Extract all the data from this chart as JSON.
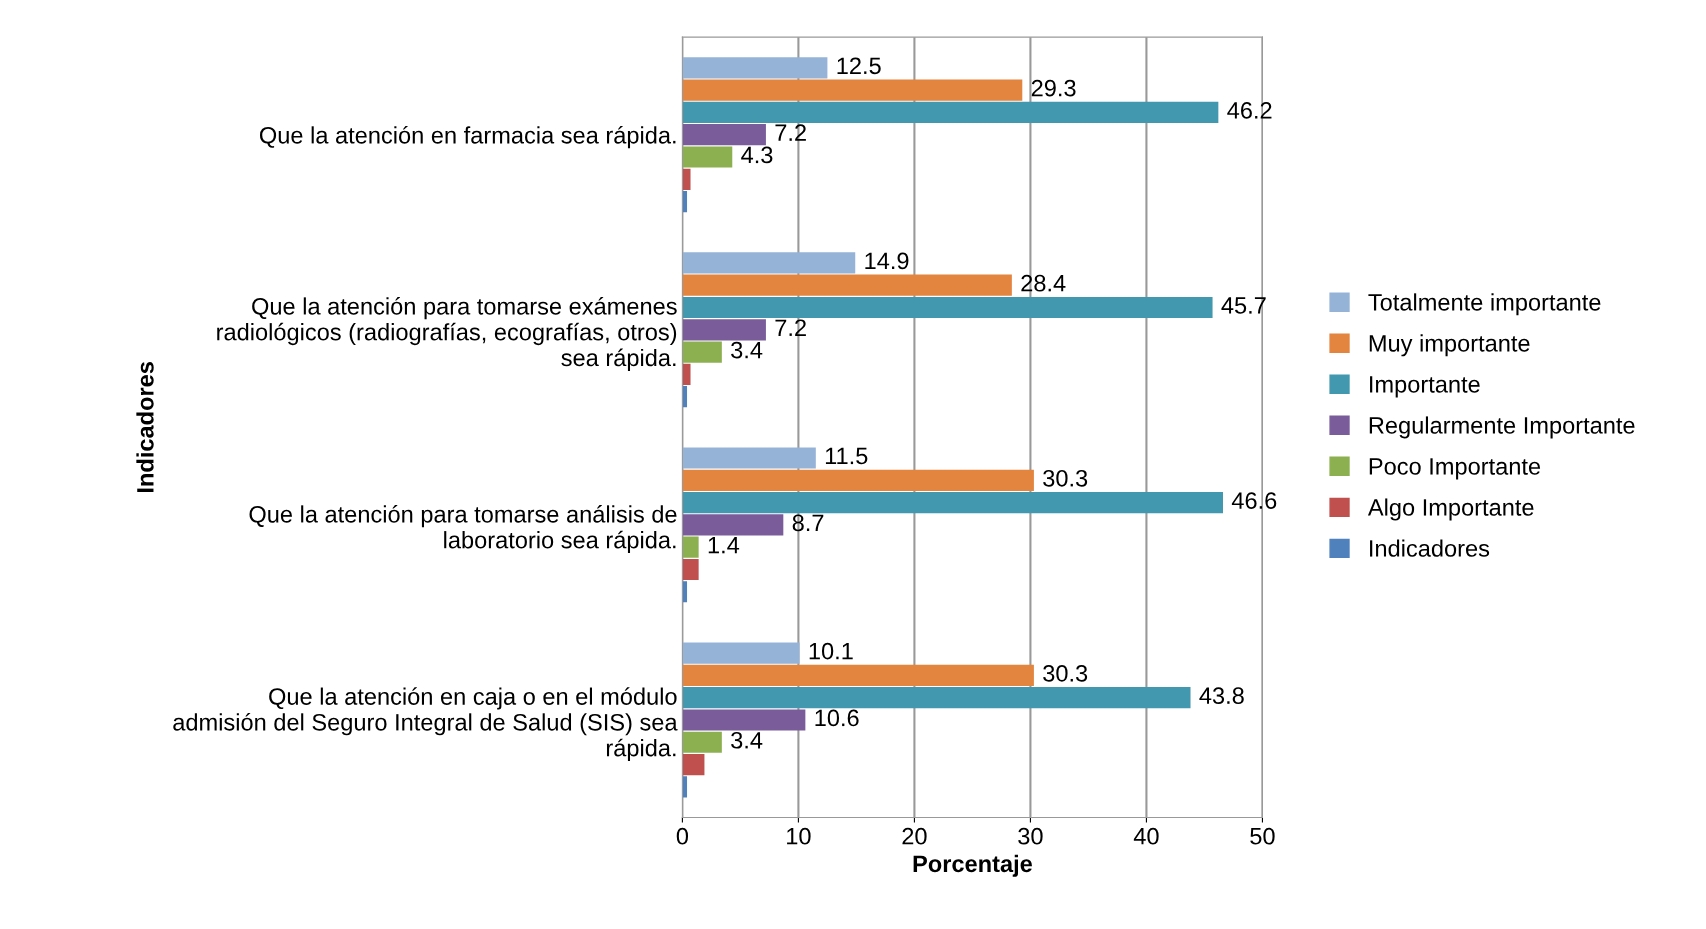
{
  "chart_data": {
    "type": "bar",
    "orientation": "horizontal",
    "categories": [
      "Que la atención en farmacia sea rápida.",
      "Que la atención para tomarse exámenes\nradiológicos (radiografías, ecografías, otros)\nsea rápida.",
      "Que la atención para tomarse análisis de\nlaboratorio sea rápida.",
      "Que la atención en caja o en el módulo\nadmisión del Seguro Integral de Salud (SIS) sea\nrápida."
    ],
    "series": [
      {
        "name": "Totalmente importante",
        "color": "#95b3d7",
        "values": [
          12.5,
          14.9,
          11.5,
          10.1
        ],
        "value_labels": [
          "12.5",
          "14.9",
          "11.5",
          "10.1"
        ]
      },
      {
        "name": "Muy importante",
        "color": "#e3843f",
        "values": [
          29.3,
          28.4,
          30.3,
          30.3
        ],
        "value_labels": [
          "29.3",
          "28.4",
          "30.3",
          "30.3"
        ]
      },
      {
        "name": "Importante",
        "color": "#4198af",
        "values": [
          46.2,
          45.7,
          46.6,
          43.8
        ],
        "value_labels": [
          "46.2",
          "45.7",
          "46.6",
          "43.8"
        ]
      },
      {
        "name": "Regularmente Importante",
        "color": "#7a5c9a",
        "values": [
          7.2,
          7.2,
          8.7,
          10.6
        ],
        "value_labels": [
          "7.2",
          "7.2",
          "8.7",
          "10.6"
        ]
      },
      {
        "name": "Poco Importante",
        "color": "#8cb04f",
        "values": [
          4.3,
          3.4,
          1.4,
          3.4
        ],
        "value_labels": [
          "4.3",
          "3.4",
          "1.4",
          "3.4"
        ]
      },
      {
        "name": "Algo Importante",
        "color": "#c0504d",
        "values": [
          0.7,
          0.7,
          1.4,
          1.9
        ],
        "value_labels": [
          null,
          null,
          null,
          null
        ]
      },
      {
        "name": "Indicadores",
        "color": "#4f81bd",
        "values": [
          0.4,
          0.4,
          0.4,
          0.4
        ],
        "value_labels": [
          null,
          null,
          null,
          null
        ]
      }
    ],
    "xlim": [
      0,
      50
    ],
    "xticks": [
      0,
      10,
      20,
      30,
      40,
      50
    ],
    "xlabel": "Porcentaje",
    "ylabel": "Indicadores",
    "grid": "x",
    "legend": "right"
  }
}
